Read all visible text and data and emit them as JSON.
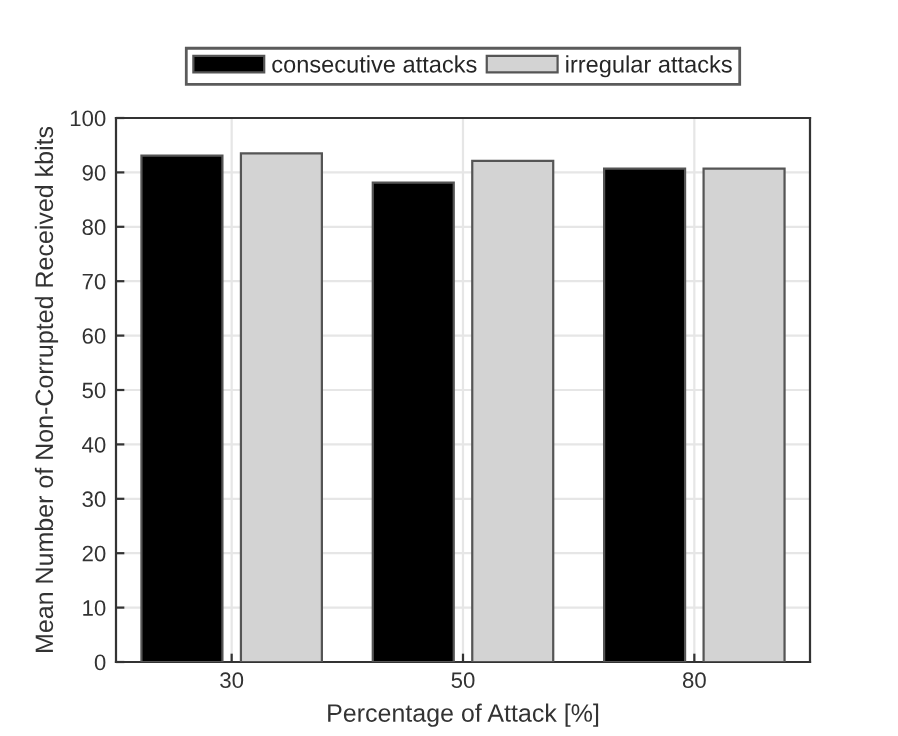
{
  "chart_data": {
    "type": "bar",
    "xlabel": "Percentage of Attack [%]",
    "ylabel": "Mean Number of Non-Corrupted Received kbits",
    "categories": [
      "30",
      "50",
      "80"
    ],
    "series": [
      {
        "name": "consecutive attacks",
        "color": "#000000",
        "values": [
          93.1,
          88.1,
          90.7
        ]
      },
      {
        "name": "irregular attacks",
        "color": "#d3d3d3",
        "values": [
          93.5,
          92.1,
          90.7
        ]
      }
    ],
    "ylim": [
      0,
      100
    ],
    "yticks": [
      0,
      10,
      20,
      30,
      40,
      50,
      60,
      70,
      80,
      90,
      100
    ],
    "grid": true,
    "legend": "top"
  }
}
